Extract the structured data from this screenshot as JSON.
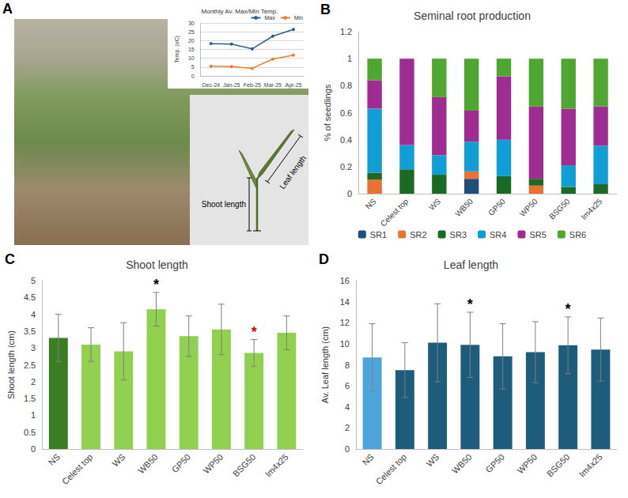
{
  "chart_data": [
    {
      "panel": "A",
      "type": "line",
      "title": "Monthly Av. Max/Min Temp.",
      "ylabel": "Temp. (oC)",
      "categories": [
        "Dec-24",
        "Jan-25",
        "Feb-25",
        "Mar-25",
        "Apr-25"
      ],
      "series": [
        {
          "name": "Max",
          "color": "#2e5f8f",
          "marker": "circle",
          "line_style": "solid",
          "values": [
            18.3,
            18,
            15.3,
            22.5,
            26.3
          ]
        },
        {
          "name": "Min",
          "color": "#ed7d31",
          "marker": "circle",
          "line_style": "solid",
          "values": [
            5.5,
            5.3,
            4.3,
            9.5,
            11.8
          ]
        }
      ],
      "ylim": [
        0,
        30
      ],
      "yticks": [
        0,
        5,
        10,
        15,
        20,
        25,
        30
      ],
      "grid": true,
      "legend": "top"
    },
    {
      "panel": "B",
      "type": "bar",
      "title": "Seminal root production",
      "ylabel": "% of seedlings",
      "categories": [
        "NS",
        "Celest top",
        "WS",
        "WB50",
        "GP50",
        "WP50",
        "BSG50",
        "Im4x25"
      ],
      "series": [
        {
          "name": "SR1",
          "color": "#1f4e79",
          "values": [
            0,
            0,
            0,
            0.11,
            0,
            0,
            0,
            0
          ]
        },
        {
          "name": "SR2",
          "color": "#e97132",
          "values": [
            0.105,
            0,
            0,
            0.055,
            0,
            0.06,
            0,
            0
          ]
        },
        {
          "name": "SR3",
          "color": "#196b24",
          "values": [
            0.05,
            0.18,
            0.14,
            0,
            0.13,
            0.05,
            0.05,
            0.07
          ]
        },
        {
          "name": "SR4",
          "color": "#0f9ed5",
          "values": [
            0.475,
            0.18,
            0.145,
            0.22,
            0.27,
            0,
            0.16,
            0.285
          ]
        },
        {
          "name": "SR5",
          "color": "#a02b93",
          "values": [
            0.21,
            0.64,
            0.43,
            0.23,
            0.47,
            0.535,
            0.42,
            0.29
          ]
        },
        {
          "name": "SR6",
          "color": "#4ea72e",
          "values": [
            0.16,
            0,
            0.285,
            0.385,
            0.13,
            0.355,
            0.37,
            0.355
          ]
        }
      ],
      "ylim": [
        0,
        1.2
      ],
      "yticks": [
        0,
        0.2,
        0.4,
        0.6,
        0.8,
        1,
        1.2
      ],
      "stacked": true,
      "grid": false,
      "legend": "bottom"
    },
    {
      "panel": "C",
      "type": "bar",
      "title": "Shoot length",
      "ylabel": "Shoot length (cm)",
      "categories": [
        "NS",
        "Celest top",
        "WS",
        "WB50",
        "GP50",
        "WP50",
        "BSG50",
        "Im4x25"
      ],
      "values": [
        3.3,
        3.1,
        2.9,
        4.15,
        3.35,
        3.55,
        2.85,
        3.45
      ],
      "errors": [
        0.7,
        0.5,
        0.85,
        0.5,
        0.6,
        0.75,
        0.4,
        0.5
      ],
      "colors": [
        "#3b7d23",
        "#92d050",
        "#92d050",
        "#92d050",
        "#92d050",
        "#92d050",
        "#92d050",
        "#92d050"
      ],
      "annotations": [
        {
          "category": "WB50",
          "text": "*",
          "color": "#000000"
        },
        {
          "category": "BSG50",
          "text": "*",
          "color": "#e00000"
        }
      ],
      "ylim": [
        0,
        5
      ],
      "yticks": [
        0,
        0.5,
        1,
        1.5,
        2,
        2.5,
        3,
        3.5,
        4,
        4.5,
        5
      ],
      "grid": false
    },
    {
      "panel": "D",
      "type": "bar",
      "title": "Leaf length",
      "ylabel": "Av. Leaf length (cm)",
      "categories": [
        "NS",
        "Celest top",
        "WS",
        "WB50",
        "GP50",
        "WP50",
        "BSG50",
        "Im4x25"
      ],
      "values": [
        8.7,
        7.5,
        10.1,
        9.9,
        8.8,
        9.2,
        9.85,
        9.45
      ],
      "errors": [
        3.2,
        2.6,
        3.7,
        3.1,
        3.1,
        2.9,
        2.7,
        3.0
      ],
      "colors": [
        "#4ea5dc",
        "#1e5c7c",
        "#1e5c7c",
        "#1e5c7c",
        "#1e5c7c",
        "#1e5c7c",
        "#1e5c7c",
        "#1e5c7c"
      ],
      "annotations": [
        {
          "category": "WB50",
          "text": "*",
          "color": "#000000"
        },
        {
          "category": "BSG50",
          "text": "*",
          "color": "#000000"
        }
      ],
      "ylim": [
        0,
        16
      ],
      "yticks": [
        0,
        2,
        4,
        6,
        8,
        10,
        12,
        14,
        16
      ],
      "grid": false
    }
  ],
  "diagram": {
    "labels": [
      "Shoot length",
      "Leaf length"
    ]
  }
}
